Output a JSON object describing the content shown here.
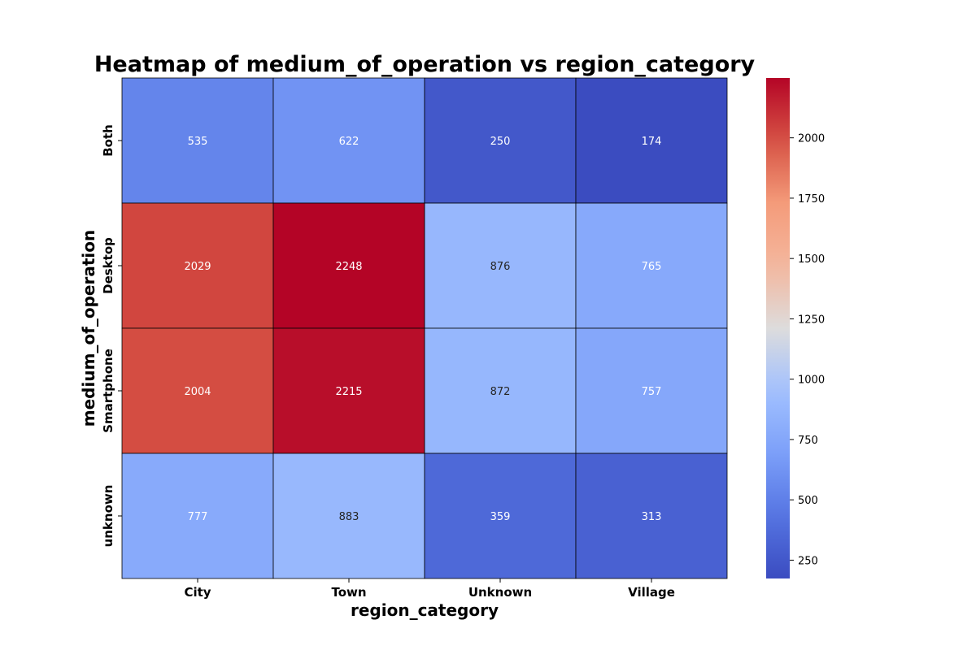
{
  "chart_data": {
    "type": "heatmap",
    "title": "Heatmap of medium_of_operation vs region_category",
    "xlabel": "region_category",
    "ylabel": "medium_of_operation",
    "x_categories": [
      "City",
      "Town",
      "Unknown",
      "Village"
    ],
    "y_categories": [
      "Both",
      "Desktop",
      "Smartphone",
      "unknown"
    ],
    "values": [
      [
        535,
        622,
        250,
        174
      ],
      [
        2029,
        2248,
        876,
        765
      ],
      [
        2004,
        2215,
        872,
        757
      ],
      [
        777,
        883,
        359,
        313
      ]
    ],
    "colormap": "coolwarm",
    "vmin": 174,
    "vmax": 2248,
    "colorbar_ticks": [
      250,
      500,
      750,
      1000,
      1250,
      1500,
      1750,
      2000
    ],
    "colorbar_position": "right",
    "grid": false
  }
}
